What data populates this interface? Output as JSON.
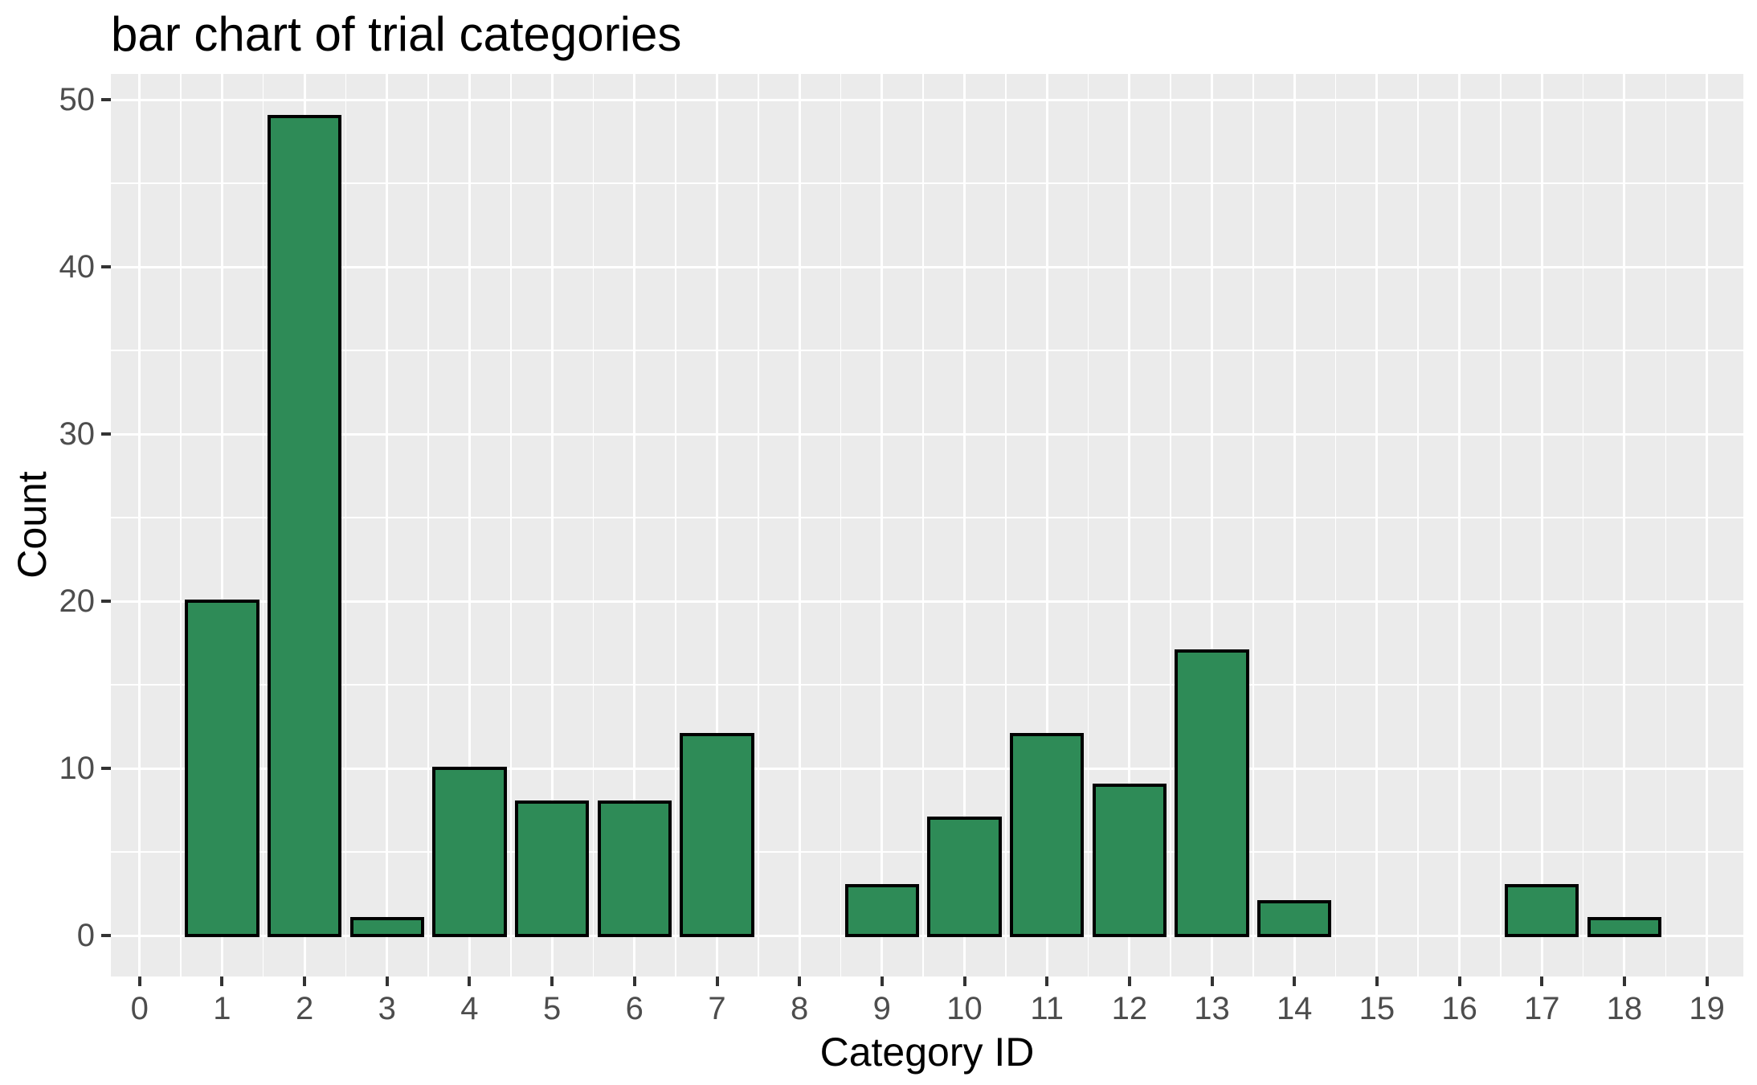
{
  "chart_data": {
    "type": "bar",
    "title": "bar chart of trial categories",
    "xlabel": "Category ID",
    "ylabel": "Count",
    "categories": [
      0,
      1,
      2,
      3,
      4,
      5,
      6,
      7,
      8,
      9,
      10,
      11,
      12,
      13,
      14,
      15,
      16,
      17,
      18,
      19
    ],
    "values": [
      0,
      20,
      49,
      1,
      10,
      8,
      8,
      12,
      0,
      3,
      7,
      12,
      9,
      17,
      2,
      0,
      0,
      3,
      1,
      0
    ],
    "x_ticks": [
      0,
      1,
      2,
      3,
      4,
      5,
      6,
      7,
      8,
      9,
      10,
      11,
      12,
      13,
      14,
      15,
      16,
      17,
      18,
      19
    ],
    "y_ticks": [
      0,
      10,
      20,
      30,
      40,
      50
    ],
    "y_minor_ticks": [
      5,
      15,
      25,
      35,
      45
    ],
    "ylim": [
      0,
      50
    ],
    "bar_width": 0.9,
    "grid": "on",
    "legend": "none",
    "colors": {
      "bar_fill": "#2E8B57",
      "bar_stroke": "#000000",
      "panel_bg": "#EBEBEB",
      "grid": "#FFFFFF",
      "tick_label": "#4D4D4D",
      "tick_mark": "#333333",
      "axis_title": "#000000",
      "title": "#000000",
      "figure_bg": "#FFFFFF"
    }
  }
}
